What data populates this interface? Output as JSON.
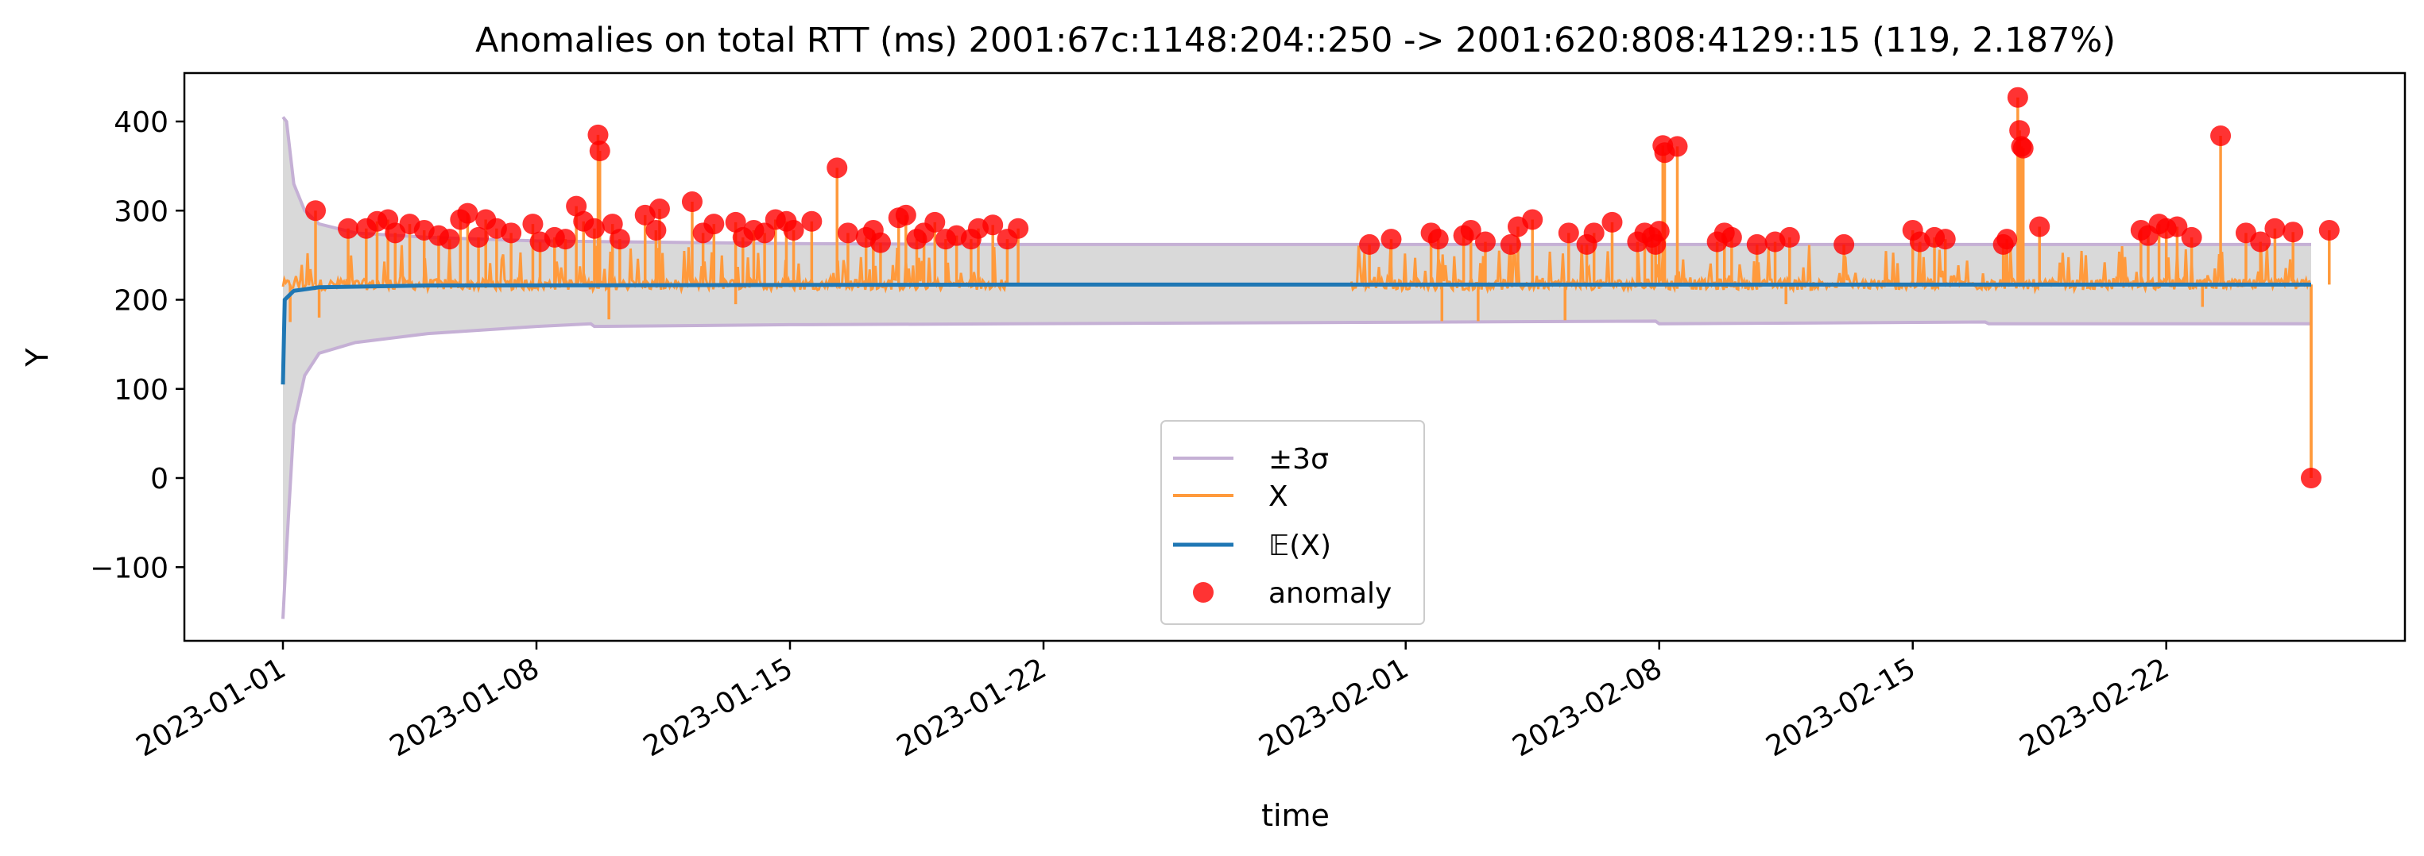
{
  "chart_data": {
    "type": "line",
    "title": "Anomalies on total RTT (ms)  2001:67c:1148:204::250 -> 2001:620:808:4129::15 (119, 2.187%)",
    "xlabel": "time",
    "ylabel": "Y",
    "xlim": [
      "2023-01-01",
      "2023-02-26"
    ],
    "ylim": [
      -185,
      455
    ],
    "x_ticks": [
      "2023-01-01",
      "2023-01-08",
      "2023-01-15",
      "2023-01-22",
      "2023-02-01",
      "2023-02-08",
      "2023-02-15",
      "2023-02-22"
    ],
    "y_ticks": [
      -100,
      0,
      100,
      200,
      300,
      400
    ],
    "y_tick_labels": [
      "−100",
      "0",
      "100",
      "200",
      "300",
      "400"
    ],
    "grid": false,
    "legend_position": "lower-center",
    "colors": {
      "sigma": "#c5b0d5",
      "band": "#d9d9d9",
      "x": "#ff9a3c",
      "mean": "#1f77b4",
      "anomaly": "#ff0000"
    },
    "legend": [
      {
        "key": "sigma",
        "label": "±3σ"
      },
      {
        "key": "x",
        "label": "X"
      },
      {
        "key": "mean",
        "label": "𝔼(X)"
      },
      {
        "key": "anomaly",
        "label": "anomaly"
      }
    ],
    "data_gap": [
      "2023-01-21",
      "2023-01-30.5"
    ],
    "series": [
      {
        "name": "±3σ",
        "upper": [
          [
            "2023-01-01",
            405
          ],
          [
            "2023-01-01.1",
            400
          ],
          [
            "2023-01-01.3",
            330
          ],
          [
            "2023-01-01.6",
            300
          ],
          [
            "2023-01-02",
            285
          ],
          [
            "2023-01-03",
            275
          ],
          [
            "2023-01-05",
            270
          ],
          [
            "2023-01-08",
            266
          ],
          [
            "2023-01-15",
            263
          ],
          [
            "2023-01-21",
            262
          ],
          [
            "2023-02-08",
            262
          ],
          [
            "2023-02-26",
            262
          ]
        ],
        "lower": [
          [
            "2023-01-01",
            -158
          ],
          [
            "2023-01-01.1",
            -80
          ],
          [
            "2023-01-01.3",
            60
          ],
          [
            "2023-01-01.6",
            115
          ],
          [
            "2023-01-02",
            140
          ],
          [
            "2023-01-03",
            152
          ],
          [
            "2023-01-05",
            162
          ],
          [
            "2023-01-08",
            170
          ],
          [
            "2023-01-09.5",
            173
          ],
          [
            "2023-01-09.6",
            170
          ],
          [
            "2023-01-15",
            172
          ],
          [
            "2023-02-07.9",
            176
          ],
          [
            "2023-02-08",
            173
          ],
          [
            "2023-02-17",
            175
          ],
          [
            "2023-02-17.1",
            173
          ],
          [
            "2023-02-26",
            173
          ]
        ]
      },
      {
        "name": "X",
        "baseline": 217,
        "segments": [
          [
            "2023-01-01",
            "2023-01-21"
          ],
          [
            "2023-01-30.5",
            "2023-02-26"
          ]
        ],
        "dips": [
          [
            "2023-01-01.2",
            175
          ],
          [
            "2023-01-02.0",
            180
          ],
          [
            "2023-01-10.0",
            178
          ],
          [
            "2023-01-13.5",
            195
          ],
          [
            "2023-02-02.0",
            176
          ],
          [
            "2023-02-03.0",
            176
          ],
          [
            "2023-02-05.4",
            177
          ],
          [
            "2023-02-11.5",
            195
          ],
          [
            "2023-02-23.0",
            192
          ],
          [
            "2023-02-26.0",
            0
          ]
        ]
      },
      {
        "name": "𝔼(X)",
        "points": [
          [
            "2023-01-01",
            105
          ],
          [
            "2023-01-01.05",
            200
          ],
          [
            "2023-01-01.3",
            210
          ],
          [
            "2023-01-02",
            214
          ],
          [
            "2023-01-05",
            216
          ],
          [
            "2023-01-21",
            217
          ],
          [
            "2023-02-26",
            217
          ]
        ]
      },
      {
        "name": "anomaly",
        "points": [
          [
            "2023-01-01.9",
            300
          ],
          [
            "2023-01-02.8",
            280
          ],
          [
            "2023-01-03.3",
            280
          ],
          [
            "2023-01-03.6",
            288
          ],
          [
            "2023-01-03.9",
            290
          ],
          [
            "2023-01-04.1",
            275
          ],
          [
            "2023-01-04.5",
            285
          ],
          [
            "2023-01-04.9",
            278
          ],
          [
            "2023-01-05.3",
            272
          ],
          [
            "2023-01-05.6",
            268
          ],
          [
            "2023-01-05.9",
            290
          ],
          [
            "2023-01-06.1",
            297
          ],
          [
            "2023-01-06.4",
            270
          ],
          [
            "2023-01-06.6",
            290
          ],
          [
            "2023-01-06.9",
            280
          ],
          [
            "2023-01-07.3",
            275
          ],
          [
            "2023-01-07.9",
            285
          ],
          [
            "2023-01-08.1",
            265
          ],
          [
            "2023-01-08.5",
            270
          ],
          [
            "2023-01-08.8",
            268
          ],
          [
            "2023-01-09.1",
            305
          ],
          [
            "2023-01-09.3",
            288
          ],
          [
            "2023-01-09.6",
            280
          ],
          [
            "2023-01-09.7",
            385
          ],
          [
            "2023-01-09.75",
            367
          ],
          [
            "2023-01-10.1",
            285
          ],
          [
            "2023-01-10.3",
            268
          ],
          [
            "2023-01-11.0",
            295
          ],
          [
            "2023-01-11.3",
            278
          ],
          [
            "2023-01-11.4",
            302
          ],
          [
            "2023-01-12.3",
            310
          ],
          [
            "2023-01-12.6",
            275
          ],
          [
            "2023-01-12.9",
            285
          ],
          [
            "2023-01-13.5",
            287
          ],
          [
            "2023-01-13.7",
            270
          ],
          [
            "2023-01-14.0",
            278
          ],
          [
            "2023-01-14.3",
            275
          ],
          [
            "2023-01-14.6",
            290
          ],
          [
            "2023-01-14.9",
            288
          ],
          [
            "2023-01-15.1",
            278
          ],
          [
            "2023-01-15.6",
            288
          ],
          [
            "2023-01-16.3",
            348
          ],
          [
            "2023-01-16.6",
            275
          ],
          [
            "2023-01-17.1",
            270
          ],
          [
            "2023-01-17.3",
            278
          ],
          [
            "2023-01-17.5",
            264
          ],
          [
            "2023-01-18.0",
            292
          ],
          [
            "2023-01-18.2",
            295
          ],
          [
            "2023-01-18.5",
            268
          ],
          [
            "2023-01-18.7",
            275
          ],
          [
            "2023-01-19.0",
            287
          ],
          [
            "2023-01-19.3",
            268
          ],
          [
            "2023-01-19.6",
            272
          ],
          [
            "2023-01-20.0",
            268
          ],
          [
            "2023-01-20.2",
            280
          ],
          [
            "2023-01-20.6",
            284
          ],
          [
            "2023-01-21.0",
            268
          ],
          [
            "2023-01-21.3",
            280
          ],
          [
            "2023-01-31.0",
            262
          ],
          [
            "2023-01-31.6",
            268
          ],
          [
            "2023-02-01.7",
            275
          ],
          [
            "2023-02-01.9",
            268
          ],
          [
            "2023-02-02.6",
            272
          ],
          [
            "2023-02-02.8",
            278
          ],
          [
            "2023-02-03.2",
            265
          ],
          [
            "2023-02-03.9",
            262
          ],
          [
            "2023-02-04.1",
            282
          ],
          [
            "2023-02-04.5",
            290
          ],
          [
            "2023-02-05.5",
            275
          ],
          [
            "2023-02-06.0",
            262
          ],
          [
            "2023-02-06.2",
            275
          ],
          [
            "2023-02-06.7",
            287
          ],
          [
            "2023-02-07.4",
            265
          ],
          [
            "2023-02-07.6",
            275
          ],
          [
            "2023-02-07.8",
            270
          ],
          [
            "2023-02-07.9",
            262
          ],
          [
            "2023-02-08.0",
            277
          ],
          [
            "2023-02-08.1",
            373
          ],
          [
            "2023-02-08.15",
            365
          ],
          [
            "2023-02-08.5",
            372
          ],
          [
            "2023-02-09.6",
            265
          ],
          [
            "2023-02-09.8",
            275
          ],
          [
            "2023-02-10.0",
            270
          ],
          [
            "2023-02-10.7",
            262
          ],
          [
            "2023-02-11.2",
            265
          ],
          [
            "2023-02-11.6",
            270
          ],
          [
            "2023-02-13.1",
            262
          ],
          [
            "2023-02-15.0",
            278
          ],
          [
            "2023-02-15.2",
            265
          ],
          [
            "2023-02-15.6",
            270
          ],
          [
            "2023-02-15.9",
            268
          ],
          [
            "2023-02-17.5",
            262
          ],
          [
            "2023-02-17.6",
            268
          ],
          [
            "2023-02-17.9",
            427
          ],
          [
            "2023-02-17.95",
            390
          ],
          [
            "2023-02-18.0",
            372
          ],
          [
            "2023-02-18.05",
            370
          ],
          [
            "2023-02-18.5",
            282
          ],
          [
            "2023-02-21.3",
            278
          ],
          [
            "2023-02-21.5",
            272
          ],
          [
            "2023-02-21.8",
            285
          ],
          [
            "2023-02-22.0",
            280
          ],
          [
            "2023-02-22.3",
            282
          ],
          [
            "2023-02-22.7",
            270
          ],
          [
            "2023-02-23.5",
            384
          ],
          [
            "2023-02-24.2",
            275
          ],
          [
            "2023-02-24.6",
            265
          ],
          [
            "2023-02-25.0",
            280
          ],
          [
            "2023-02-25.5",
            276
          ],
          [
            "2023-02-26.0",
            0
          ],
          [
            "2023-02-26.5",
            278
          ]
        ]
      }
    ]
  }
}
